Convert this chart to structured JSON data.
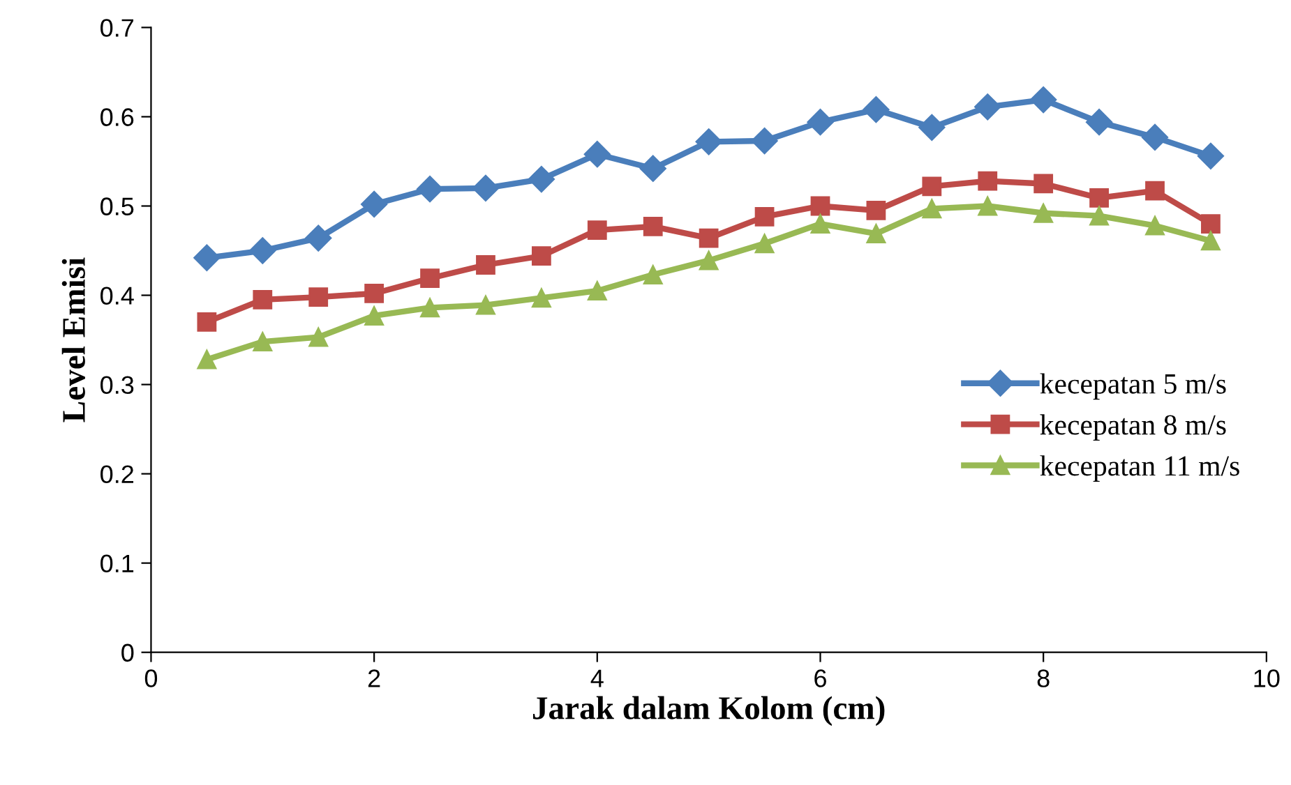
{
  "chart_data": {
    "type": "line",
    "xlabel": "Jarak dalam Kolom (cm)",
    "ylabel": "Level Emisi",
    "x": [
      0.5,
      1,
      1.5,
      2,
      2.5,
      3,
      3.5,
      4,
      4.5,
      5,
      5.5,
      6,
      6.5,
      7,
      7.5,
      8,
      8.5,
      9,
      9.5
    ],
    "series": [
      {
        "name": "kecepatan 5 m/s",
        "color": "#4a7ebb",
        "marker": "diamond",
        "values": [
          0.442,
          0.45,
          0.464,
          0.502,
          0.519,
          0.52,
          0.53,
          0.558,
          0.542,
          0.572,
          0.573,
          0.594,
          0.608,
          0.588,
          0.611,
          0.619,
          0.594,
          0.577,
          0.556
        ]
      },
      {
        "name": "kecepatan 8 m/s",
        "color": "#be4b48",
        "marker": "square",
        "values": [
          0.37,
          0.395,
          0.398,
          0.402,
          0.419,
          0.434,
          0.444,
          0.473,
          0.477,
          0.464,
          0.488,
          0.5,
          0.495,
          0.522,
          0.528,
          0.525,
          0.509,
          0.517,
          0.48
        ]
      },
      {
        "name": "kecepatan 11 m/s",
        "color": "#98b954",
        "marker": "triangle",
        "values": [
          0.328,
          0.348,
          0.353,
          0.377,
          0.386,
          0.389,
          0.397,
          0.405,
          0.423,
          0.439,
          0.458,
          0.48,
          0.469,
          0.497,
          0.5,
          0.492,
          0.489,
          0.478,
          0.461
        ]
      }
    ],
    "xlim": [
      0,
      10
    ],
    "xticks": [
      0,
      2,
      4,
      6,
      8,
      10
    ],
    "ylim": [
      0,
      0.7
    ],
    "yticks": [
      {
        "value": 0,
        "label": "0"
      },
      0.1,
      0.2,
      0.3,
      0.4,
      0.5,
      0.6,
      0.7
    ],
    "grid": false,
    "legend": "right",
    "line_style": "solid"
  }
}
